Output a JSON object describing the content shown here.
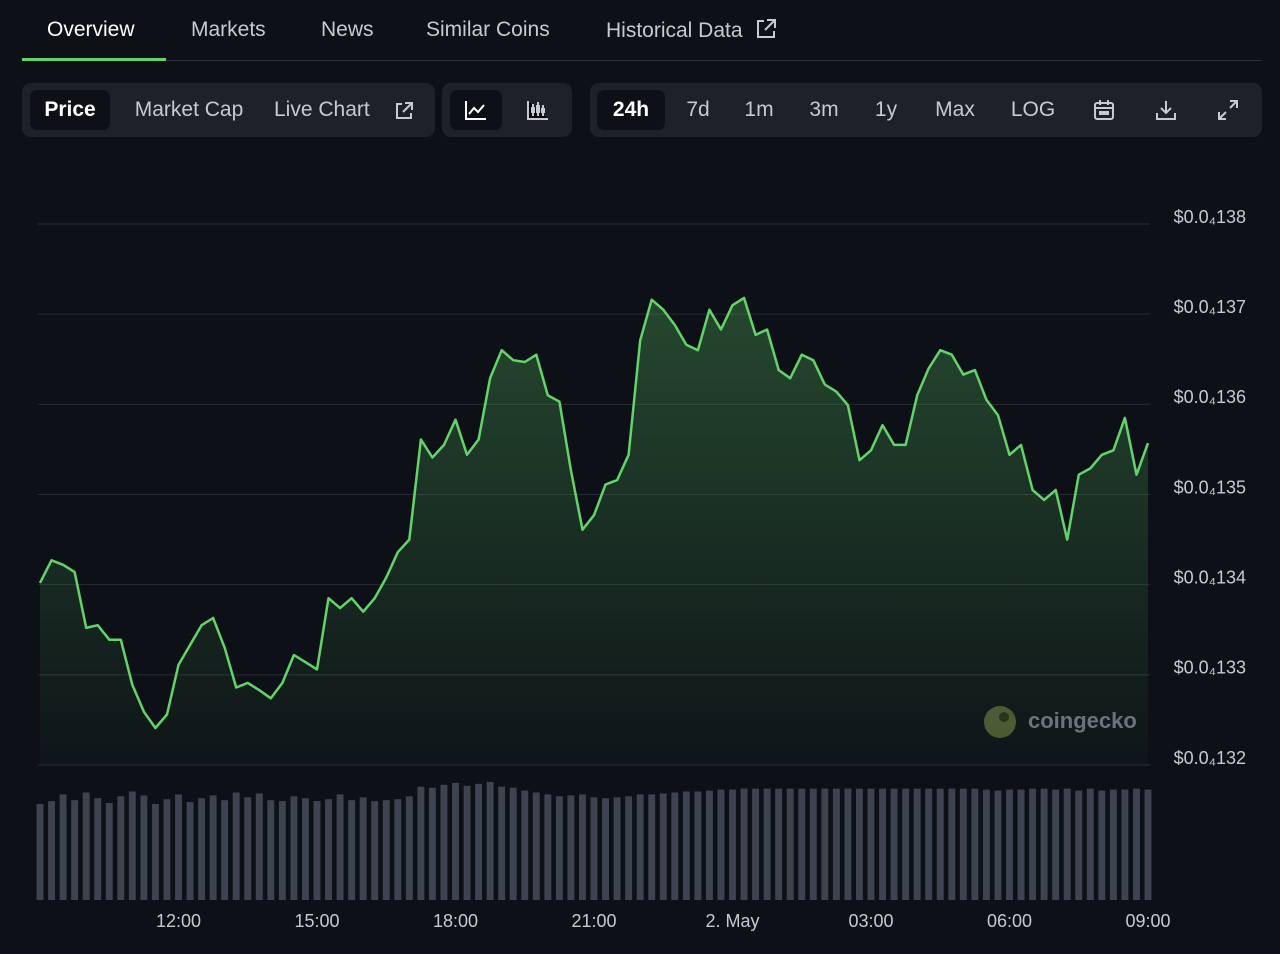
{
  "tabs": [
    "Overview",
    "Markets",
    "News",
    "Similar Coins",
    "Historical Data"
  ],
  "active_tab": 0,
  "chart_modes": [
    "Price",
    "Market Cap",
    "Live Chart"
  ],
  "active_mode": 0,
  "ranges": [
    "24h",
    "7d",
    "1m",
    "3m",
    "1y",
    "Max",
    "LOG"
  ],
  "active_range": 0,
  "watermark": "coingecko",
  "chart_data": {
    "type": "line",
    "color": "#63d46a",
    "volume_color": "#3d434f",
    "grid": true,
    "categories": [
      null,
      null,
      null,
      null,
      null,
      null,
      null,
      null,
      null,
      null,
      null,
      null,
      "12:00",
      null,
      null,
      null,
      null,
      null,
      null,
      null,
      null,
      null,
      null,
      null,
      "15:00",
      null,
      null,
      null,
      null,
      null,
      null,
      null,
      null,
      null,
      null,
      null,
      "18:00",
      null,
      null,
      null,
      null,
      null,
      null,
      null,
      null,
      null,
      null,
      null,
      "21:00",
      null,
      null,
      null,
      null,
      null,
      null,
      null,
      null,
      null,
      null,
      null,
      "2. May",
      null,
      null,
      null,
      null,
      null,
      null,
      null,
      null,
      null,
      null,
      null,
      "03:00",
      null,
      null,
      null,
      null,
      null,
      null,
      null,
      null,
      null,
      null,
      null,
      "06:00",
      null,
      null,
      null,
      null,
      null,
      null,
      null,
      null,
      null,
      null,
      null,
      "09:00"
    ],
    "values": [
      1.3402e-05,
      1.3427e-05,
      1.3422e-05,
      1.3414e-05,
      1.3352e-05,
      1.3355e-05,
      1.3339e-05,
      1.3339e-05,
      1.3289e-05,
      1.3259e-05,
      1.3241e-05,
      1.3256e-05,
      1.3311e-05,
      1.3333e-05,
      1.3355e-05,
      1.3363e-05,
      1.333e-05,
      1.3286e-05,
      1.3291e-05,
      1.3283e-05,
      1.3274e-05,
      1.3291e-05,
      1.3322e-05,
      1.3314e-05,
      1.3306e-05,
      1.3385e-05,
      1.3374e-05,
      1.3385e-05,
      1.337e-05,
      1.3385e-05,
      1.3408e-05,
      1.3436e-05,
      1.345e-05,
      1.3561e-05,
      1.3541e-05,
      1.3555e-05,
      1.3583e-05,
      1.3544e-05,
      1.3561e-05,
      1.3629e-05,
      1.366e-05,
      1.3649e-05,
      1.3647e-05,
      1.3655e-05,
      1.361e-05,
      1.3603e-05,
      1.3527e-05,
      1.3461e-05,
      1.3477e-05,
      1.3511e-05,
      1.3516e-05,
      1.3544e-05,
      1.3671e-05,
      1.3716e-05,
      1.3705e-05,
      1.3688e-05,
      1.3666e-05,
      1.366e-05,
      1.3705e-05,
      1.3683e-05,
      1.371e-05,
      1.3718e-05,
      1.3677e-05,
      1.3683e-05,
      1.3638e-05,
      1.3629e-05,
      1.3655e-05,
      1.3649e-05,
      1.3622e-05,
      1.3614e-05,
      1.3599e-05,
      1.3538e-05,
      1.3549e-05,
      1.3577e-05,
      1.3555e-05,
      1.3555e-05,
      1.361e-05,
      1.364e-05,
      1.366e-05,
      1.3655e-05,
      1.3633e-05,
      1.3638e-05,
      1.3605e-05,
      1.3588e-05,
      1.3544e-05,
      1.3555e-05,
      1.3505e-05,
      1.3494e-05,
      1.3505e-05,
      1.345e-05,
      1.3522e-05,
      1.3529e-05,
      1.3544e-05,
      1.3549e-05,
      1.3585e-05,
      1.3522e-05,
      1.3557e-05
    ],
    "volume": [
      100,
      103,
      110,
      104,
      112,
      106,
      101,
      108,
      113,
      109,
      100,
      105,
      110,
      102,
      106,
      109,
      104,
      112,
      107,
      111,
      104,
      103,
      108,
      106,
      103,
      105,
      110,
      104,
      107,
      103,
      104,
      105,
      108,
      118,
      117,
      120,
      122,
      119,
      121,
      123,
      118,
      117,
      114,
      112,
      110,
      108,
      109,
      110,
      107,
      106,
      107,
      108,
      110,
      110,
      111,
      112,
      113,
      113,
      114,
      115,
      115,
      116,
      116,
      116,
      116,
      116,
      116,
      116,
      116,
      116,
      116,
      116,
      116,
      116,
      116,
      116,
      116,
      116,
      116,
      116,
      116,
      116,
      115,
      114,
      115,
      115,
      116,
      116,
      115,
      116,
      114,
      116,
      114,
      115,
      115,
      116,
      115
    ],
    "vlim": [
      0,
      125
    ],
    "ylim": [
      1.32e-05,
      1.38e-05
    ],
    "yticks": [
      {
        "value": 1.38e-05,
        "label": "$0.0₄138"
      },
      {
        "value": 1.37e-05,
        "label": "$0.0₄137"
      },
      {
        "value": 1.36e-05,
        "label": "$0.0₄136"
      },
      {
        "value": 1.35e-05,
        "label": "$0.0₄135"
      },
      {
        "value": 1.34e-05,
        "label": "$0.0₄134"
      },
      {
        "value": 1.33e-05,
        "label": "$0.0₄133"
      },
      {
        "value": 1.32e-05,
        "label": "$0.0₄132"
      }
    ]
  }
}
